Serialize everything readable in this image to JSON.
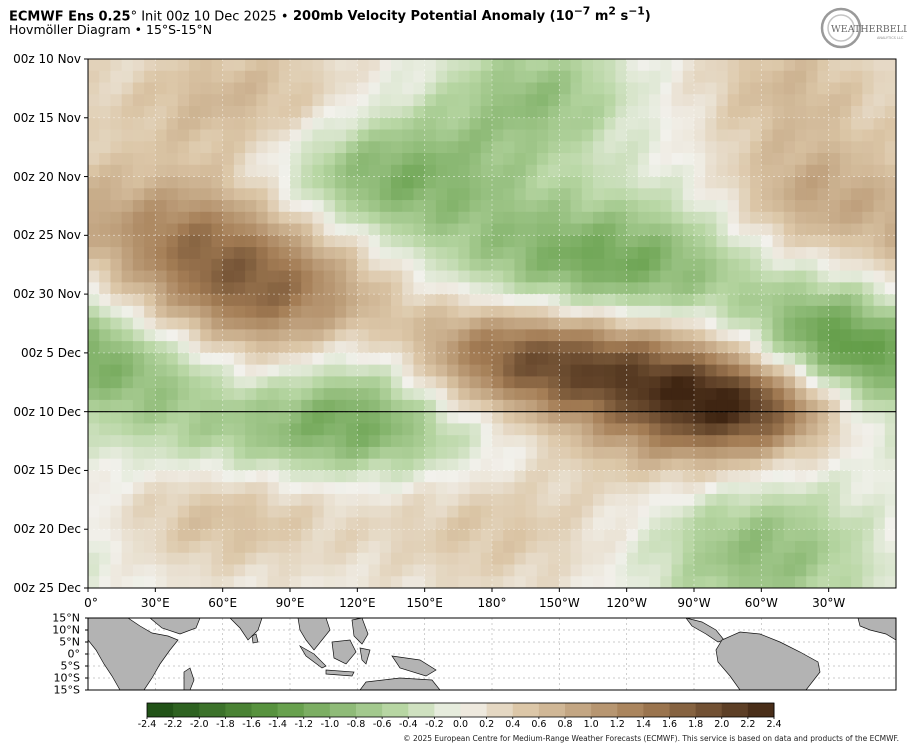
{
  "header": {
    "title_model": "ECMWF Ens 0.25",
    "title_deg": "°",
    "title_init": " Init 00z 10 Dec 2025 ",
    "title_bullet": "•",
    "title_field": " 200mb Velocity Potential Anomaly (10",
    "title_exp1": "−7",
    "title_units": " m",
    "title_exp2": "2",
    "title_s": " s",
    "title_exp3": "−1",
    "title_close": ")",
    "subtitle": "Hovmöller Diagram • 15°S-15°N"
  },
  "logo": {
    "text_main": "WEATHERBELL",
    "text_small": "ANALYTICS LLC"
  },
  "colors": {
    "neg_strong": "#1a4a12",
    "neg_mid": "#5e9a43",
    "neg_light": "#b7d6a3",
    "neutral": "#f2f1ec",
    "pos_light": "#dcc7a8",
    "pos_mid": "#a47d55",
    "pos_strong": "#3f2512",
    "land": "#b3b3b3",
    "init_line": "#000000"
  },
  "chart_data": {
    "type": "heatmap",
    "title": "ECMWF Ens 0.25° Init 00z 10 Dec 2025 • 200mb Velocity Potential Anomaly (10−7 m2 s−1)",
    "subtitle": "Hovmöller Diagram • 15°S-15°N",
    "y_axis": {
      "ticks": [
        "00z 10 Nov",
        "00z 15 Nov",
        "00z 20 Nov",
        "00z 25 Nov",
        "00z 30 Nov",
        "00z 5 Dec",
        "00z 10 Dec",
        "00z 15 Dec",
        "00z 20 Dec",
        "00z 25 Dec"
      ],
      "tick_days": [
        0,
        5,
        10,
        15,
        20,
        25,
        30,
        35,
        40,
        45
      ],
      "range_days": [
        0,
        45
      ],
      "direction": "time increasing downward"
    },
    "x_axis": {
      "ticks": [
        "0°",
        "30°E",
        "60°E",
        "90°E",
        "120°E",
        "150°E",
        "180°",
        "150°W",
        "120°W",
        "90°W",
        "60°W",
        "30°W"
      ],
      "tick_lon": [
        0,
        30,
        60,
        90,
        120,
        150,
        180,
        210,
        240,
        270,
        300,
        330
      ],
      "range_lon": [
        0,
        360
      ]
    },
    "init_line_day": 30,
    "init_line_label": "00z 10 Dec",
    "anomaly_features": [
      {
        "lon_center": 70,
        "day_center": 4,
        "lon_width": 60,
        "day_width": 6,
        "value": 0.8
      },
      {
        "lon_center": 310,
        "day_center": 2,
        "lon_width": 40,
        "day_width": 5,
        "value": 0.6
      },
      {
        "lon_center": 200,
        "day_center": 3,
        "lon_width": 40,
        "day_width": 5,
        "value": -0.8
      },
      {
        "lon_center": 130,
        "day_center": 10,
        "lon_width": 60,
        "day_width": 6,
        "value": -1.2
      },
      {
        "lon_center": 40,
        "day_center": 14,
        "lon_width": 50,
        "day_width": 5,
        "value": 0.8
      },
      {
        "lon_center": 75,
        "day_center": 20,
        "lon_width": 60,
        "day_width": 7,
        "value": 1.7
      },
      {
        "lon_center": 230,
        "day_center": 18,
        "lon_width": 70,
        "day_width": 6,
        "value": -1.3
      },
      {
        "lon_center": 320,
        "day_center": 12,
        "lon_width": 40,
        "day_width": 6,
        "value": 0.9
      },
      {
        "lon_center": 30,
        "day_center": 26,
        "lon_width": 45,
        "day_width": 5,
        "value": -1.0
      },
      {
        "lon_center": 120,
        "day_center": 27,
        "lon_width": 40,
        "day_width": 5,
        "value": -0.9
      },
      {
        "lon_center": 190,
        "day_center": 25,
        "lon_width": 55,
        "day_width": 5,
        "value": 1.6
      },
      {
        "lon_center": 250,
        "day_center": 27,
        "lon_width": 55,
        "day_width": 5,
        "value": 1.5
      },
      {
        "lon_center": 300,
        "day_center": 29.5,
        "lon_width": 45,
        "day_width": 4,
        "value": 1.9
      },
      {
        "lon_center": 330,
        "day_center": 25,
        "lon_width": 40,
        "day_width": 6,
        "value": -1.5
      },
      {
        "lon_center": 110,
        "day_center": 32,
        "lon_width": 80,
        "day_width": 4,
        "value": -0.9
      },
      {
        "lon_center": 260,
        "day_center": 33,
        "lon_width": 50,
        "day_width": 4,
        "value": 0.5
      },
      {
        "lon_center": 60,
        "day_center": 39,
        "lon_width": 50,
        "day_width": 5,
        "value": 0.6
      },
      {
        "lon_center": 180,
        "day_center": 40,
        "lon_width": 60,
        "day_width": 6,
        "value": 0.5
      },
      {
        "lon_center": 300,
        "day_center": 42,
        "lon_width": 50,
        "day_width": 6,
        "value": -0.9
      }
    ]
  },
  "map": {
    "lat_labels": [
      "15°N",
      "10°N",
      "5°N",
      "0°",
      "5°S",
      "10°S",
      "15°S"
    ],
    "lat_values": [
      15,
      10,
      5,
      0,
      -5,
      -10,
      -15
    ]
  },
  "colorbar": {
    "labels": [
      "-2.4",
      "-2.2",
      "-2.0",
      "-1.8",
      "-1.6",
      "-1.4",
      "-1.2",
      "-1.0",
      "-0.8",
      "-0.6",
      "-0.4",
      "-0.2",
      "0.0",
      "0.2",
      "0.4",
      "0.6",
      "0.8",
      "1.0",
      "1.2",
      "1.4",
      "1.6",
      "1.8",
      "2.0",
      "2.2",
      "2.4"
    ],
    "values": [
      -2.4,
      -2.2,
      -2.0,
      -1.8,
      -1.6,
      -1.4,
      -1.2,
      -1.0,
      -0.8,
      -0.6,
      -0.4,
      -0.2,
      0.0,
      0.2,
      0.4,
      0.6,
      0.8,
      1.0,
      1.2,
      1.4,
      1.6,
      1.8,
      2.0,
      2.2,
      2.4
    ]
  },
  "copyright": "© 2025 European Centre for Medium-Range Weather Forecasts (ECMWF). This service is based on data and products of the ECMWF."
}
